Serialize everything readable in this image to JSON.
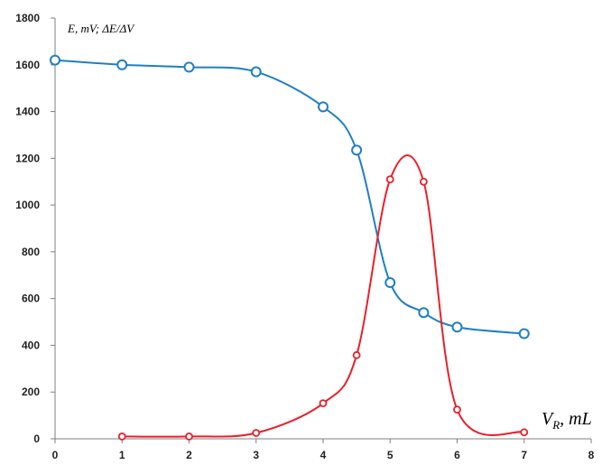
{
  "chart_data": {
    "type": "line",
    "ylabel": "E, mV;  ΔE/ΔV",
    "xlabel_main": "V",
    "xlabel_sub": "R",
    "xlabel_unit": ", mL",
    "xlim": [
      0,
      8
    ],
    "ylim": [
      0,
      1800
    ],
    "x_ticks": [
      0,
      1,
      2,
      3,
      4,
      5,
      6,
      7,
      8
    ],
    "y_ticks": [
      0,
      200,
      400,
      600,
      800,
      1000,
      1200,
      1400,
      1600,
      1800
    ],
    "grid": false,
    "legend": "none",
    "series": [
      {
        "color": "#1f7fc4",
        "marker": "open-circle-large",
        "x": [
          0,
          1,
          2,
          3,
          4,
          4.5,
          5,
          5.5,
          6,
          7
        ],
        "y": [
          1620,
          1600,
          1590,
          1570,
          1420,
          1235,
          668,
          540,
          478,
          450
        ]
      },
      {
        "color": "#e8202a",
        "marker": "open-circle-small",
        "x": [
          1,
          2,
          3,
          4,
          4.5,
          5,
          5.5,
          6,
          7
        ],
        "y": [
          10,
          10,
          25,
          152,
          358,
          1110,
          1100,
          125,
          28
        ]
      }
    ]
  }
}
